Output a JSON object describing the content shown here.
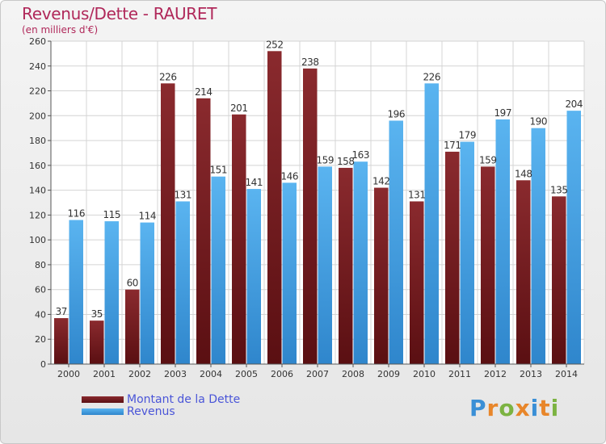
{
  "chart_data": {
    "type": "bar",
    "title": "Revenus/Dette - RAURET",
    "subtitle": "(en milliers d'€)",
    "categories": [
      "2000",
      "2001",
      "2002",
      "2003",
      "2004",
      "2005",
      "2006",
      "2007",
      "2008",
      "2009",
      "2010",
      "2011",
      "2012",
      "2013",
      "2014"
    ],
    "series": [
      {
        "name": "Montant de la Dette",
        "values": [
          37,
          35,
          60,
          226,
          214,
          201,
          252,
          238,
          158,
          142,
          131,
          171,
          159,
          148,
          135
        ],
        "color": "#7a1f24"
      },
      {
        "name": "Revenus",
        "values": [
          116,
          115,
          114,
          131,
          151,
          141,
          146,
          159,
          163,
          196,
          226,
          179,
          197,
          190,
          204
        ],
        "color": "#4ea8e8"
      }
    ],
    "ylim": [
      0,
      260
    ],
    "yticks": [
      0,
      20,
      40,
      60,
      80,
      100,
      120,
      140,
      160,
      180,
      200,
      220,
      240,
      260
    ],
    "grid": true,
    "legend_position": "bottom-left"
  },
  "brand": {
    "letters": [
      "P",
      "r",
      "o",
      "x",
      "i",
      "t",
      "i"
    ],
    "colors": [
      "#3a8fd6",
      "#e8862a",
      "#7cb342",
      "#e8862a",
      "#3a8fd6",
      "#e8862a",
      "#7cb342"
    ]
  }
}
